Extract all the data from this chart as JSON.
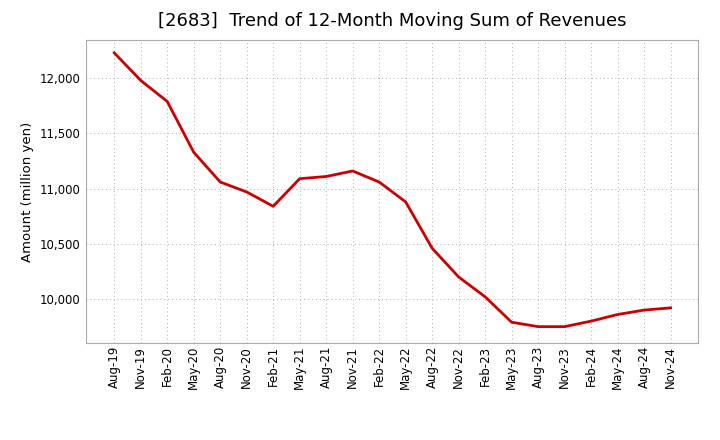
{
  "title": "[2683]  Trend of 12-Month Moving Sum of Revenues",
  "ylabel": "Amount (million yen)",
  "line_color": "#cc0000",
  "background_color": "#ffffff",
  "plot_bg_color": "#ffffff",
  "grid_color": "#999999",
  "x_labels": [
    "Aug-19",
    "Nov-19",
    "Feb-20",
    "May-20",
    "Aug-20",
    "Nov-20",
    "Feb-21",
    "May-21",
    "Aug-21",
    "Nov-21",
    "Feb-22",
    "May-22",
    "Aug-22",
    "Nov-22",
    "Feb-23",
    "May-23",
    "Aug-23",
    "Nov-23",
    "Feb-24",
    "May-24",
    "Aug-24",
    "Nov-24"
  ],
  "values": [
    12230,
    11980,
    11790,
    11330,
    11060,
    10970,
    10840,
    11090,
    11110,
    11160,
    11060,
    10880,
    10460,
    10200,
    10020,
    9790,
    9750,
    9750,
    9800,
    9860,
    9900,
    9920
  ],
  "ylim_min": 9600,
  "ylim_max": 12350,
  "yticks": [
    10000,
    10500,
    11000,
    11500,
    12000
  ],
  "title_fontsize": 13,
  "label_fontsize": 9.5,
  "tick_fontsize": 8.5,
  "line_width": 2.0
}
